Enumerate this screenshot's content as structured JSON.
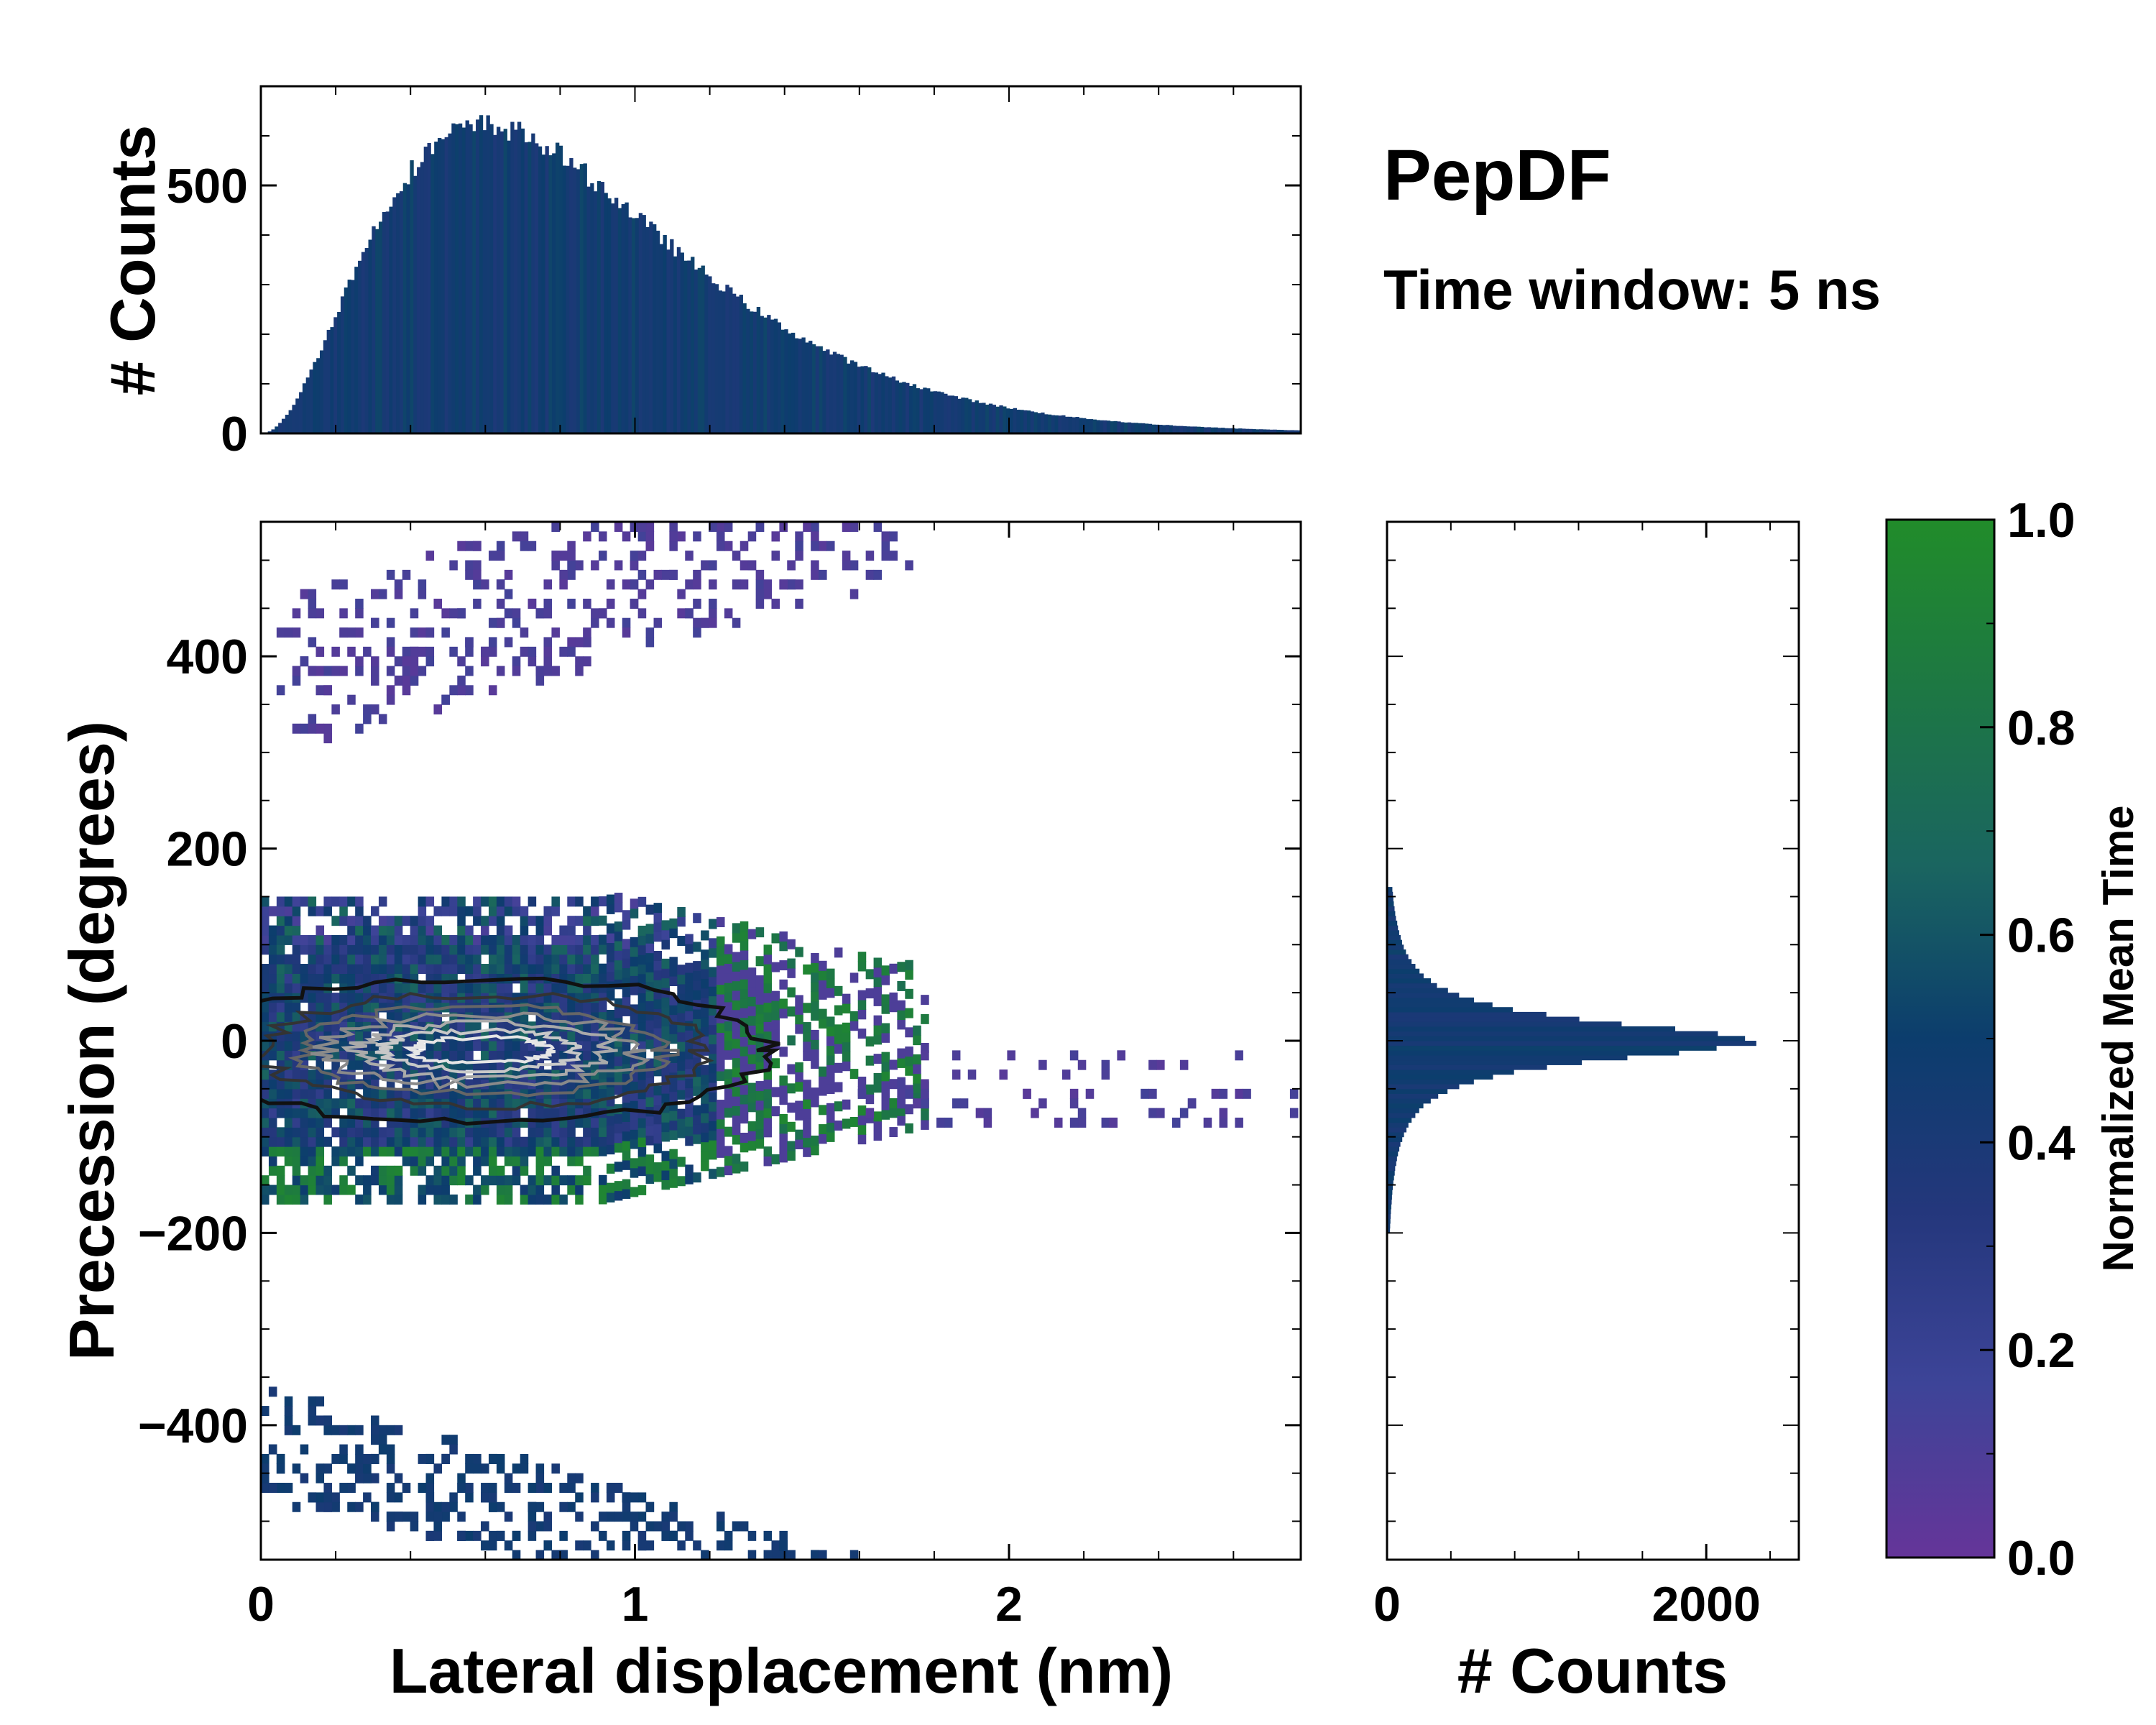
{
  "chart_data": {
    "type": "heatmap",
    "title": "PepDF",
    "subtitle": "Time window: 5 ns",
    "main": {
      "xlabel": "Lateral displacement (nm)",
      "ylabel": "Precession (degrees)",
      "xlim": [
        0,
        2.78
      ],
      "ylim": [
        -540,
        540
      ],
      "xticks": [
        "0",
        "1",
        "2"
      ],
      "xtick_values": [
        0,
        1,
        2
      ],
      "yticks": [
        "400",
        "200",
        "0",
        "−200",
        "−400"
      ],
      "ytick_values": [
        400,
        200,
        0,
        -200,
        -400
      ],
      "core_region": {
        "x_range": [
          0.0,
          1.75
        ],
        "y_range": [
          -150,
          150
        ],
        "center_x": 0.55,
        "center_y": -10
      },
      "lobes": [
        {
          "name": "upper lobe",
          "x_range": [
            0.05,
            1.75
          ],
          "y_range": [
            290,
            520
          ],
          "color_value": 0.1
        },
        {
          "name": "lower lobe",
          "x_range": [
            0.0,
            1.6
          ],
          "y_range": [
            -540,
            -340
          ],
          "color_value": 0.45
        },
        {
          "name": "right tail",
          "x_range": [
            1.6,
            2.78
          ],
          "y_range": [
            -90,
            -10
          ],
          "color_value": 0.1
        }
      ],
      "contours": "density contours (grey-to-black) centered near x=0.5 nm, y=-10 degrees"
    },
    "top_hist": {
      "ylabel": "# Counts",
      "yticks": [
        "500",
        "0"
      ],
      "ytick_values": [
        500,
        0
      ],
      "ylim": [
        0,
        700
      ],
      "peak_x": 0.6,
      "peak_count": 620,
      "bin_count": 300,
      "x_range": [
        0,
        2.78
      ]
    },
    "right_hist": {
      "xlabel": "# Counts",
      "xticks": [
        "0",
        "2000"
      ],
      "xtick_values": [
        0,
        2000
      ],
      "xlim": [
        0,
        2580
      ],
      "peak_y": 0,
      "peak_count": 2330,
      "y_range": [
        -200,
        160
      ]
    },
    "colorbar": {
      "label": "Normalized Mean Time",
      "ticks": [
        "1.0",
        "0.8",
        "0.6",
        "0.4",
        "0.2",
        "0.0"
      ],
      "tick_values": [
        1.0,
        0.8,
        0.6,
        0.4,
        0.2,
        0.0
      ],
      "range": [
        0,
        1
      ],
      "colors": [
        "#653599",
        "#3d4498",
        "#24377c",
        "#0c3d6d",
        "#1a6560",
        "#1d7744",
        "#218c2a"
      ]
    }
  }
}
